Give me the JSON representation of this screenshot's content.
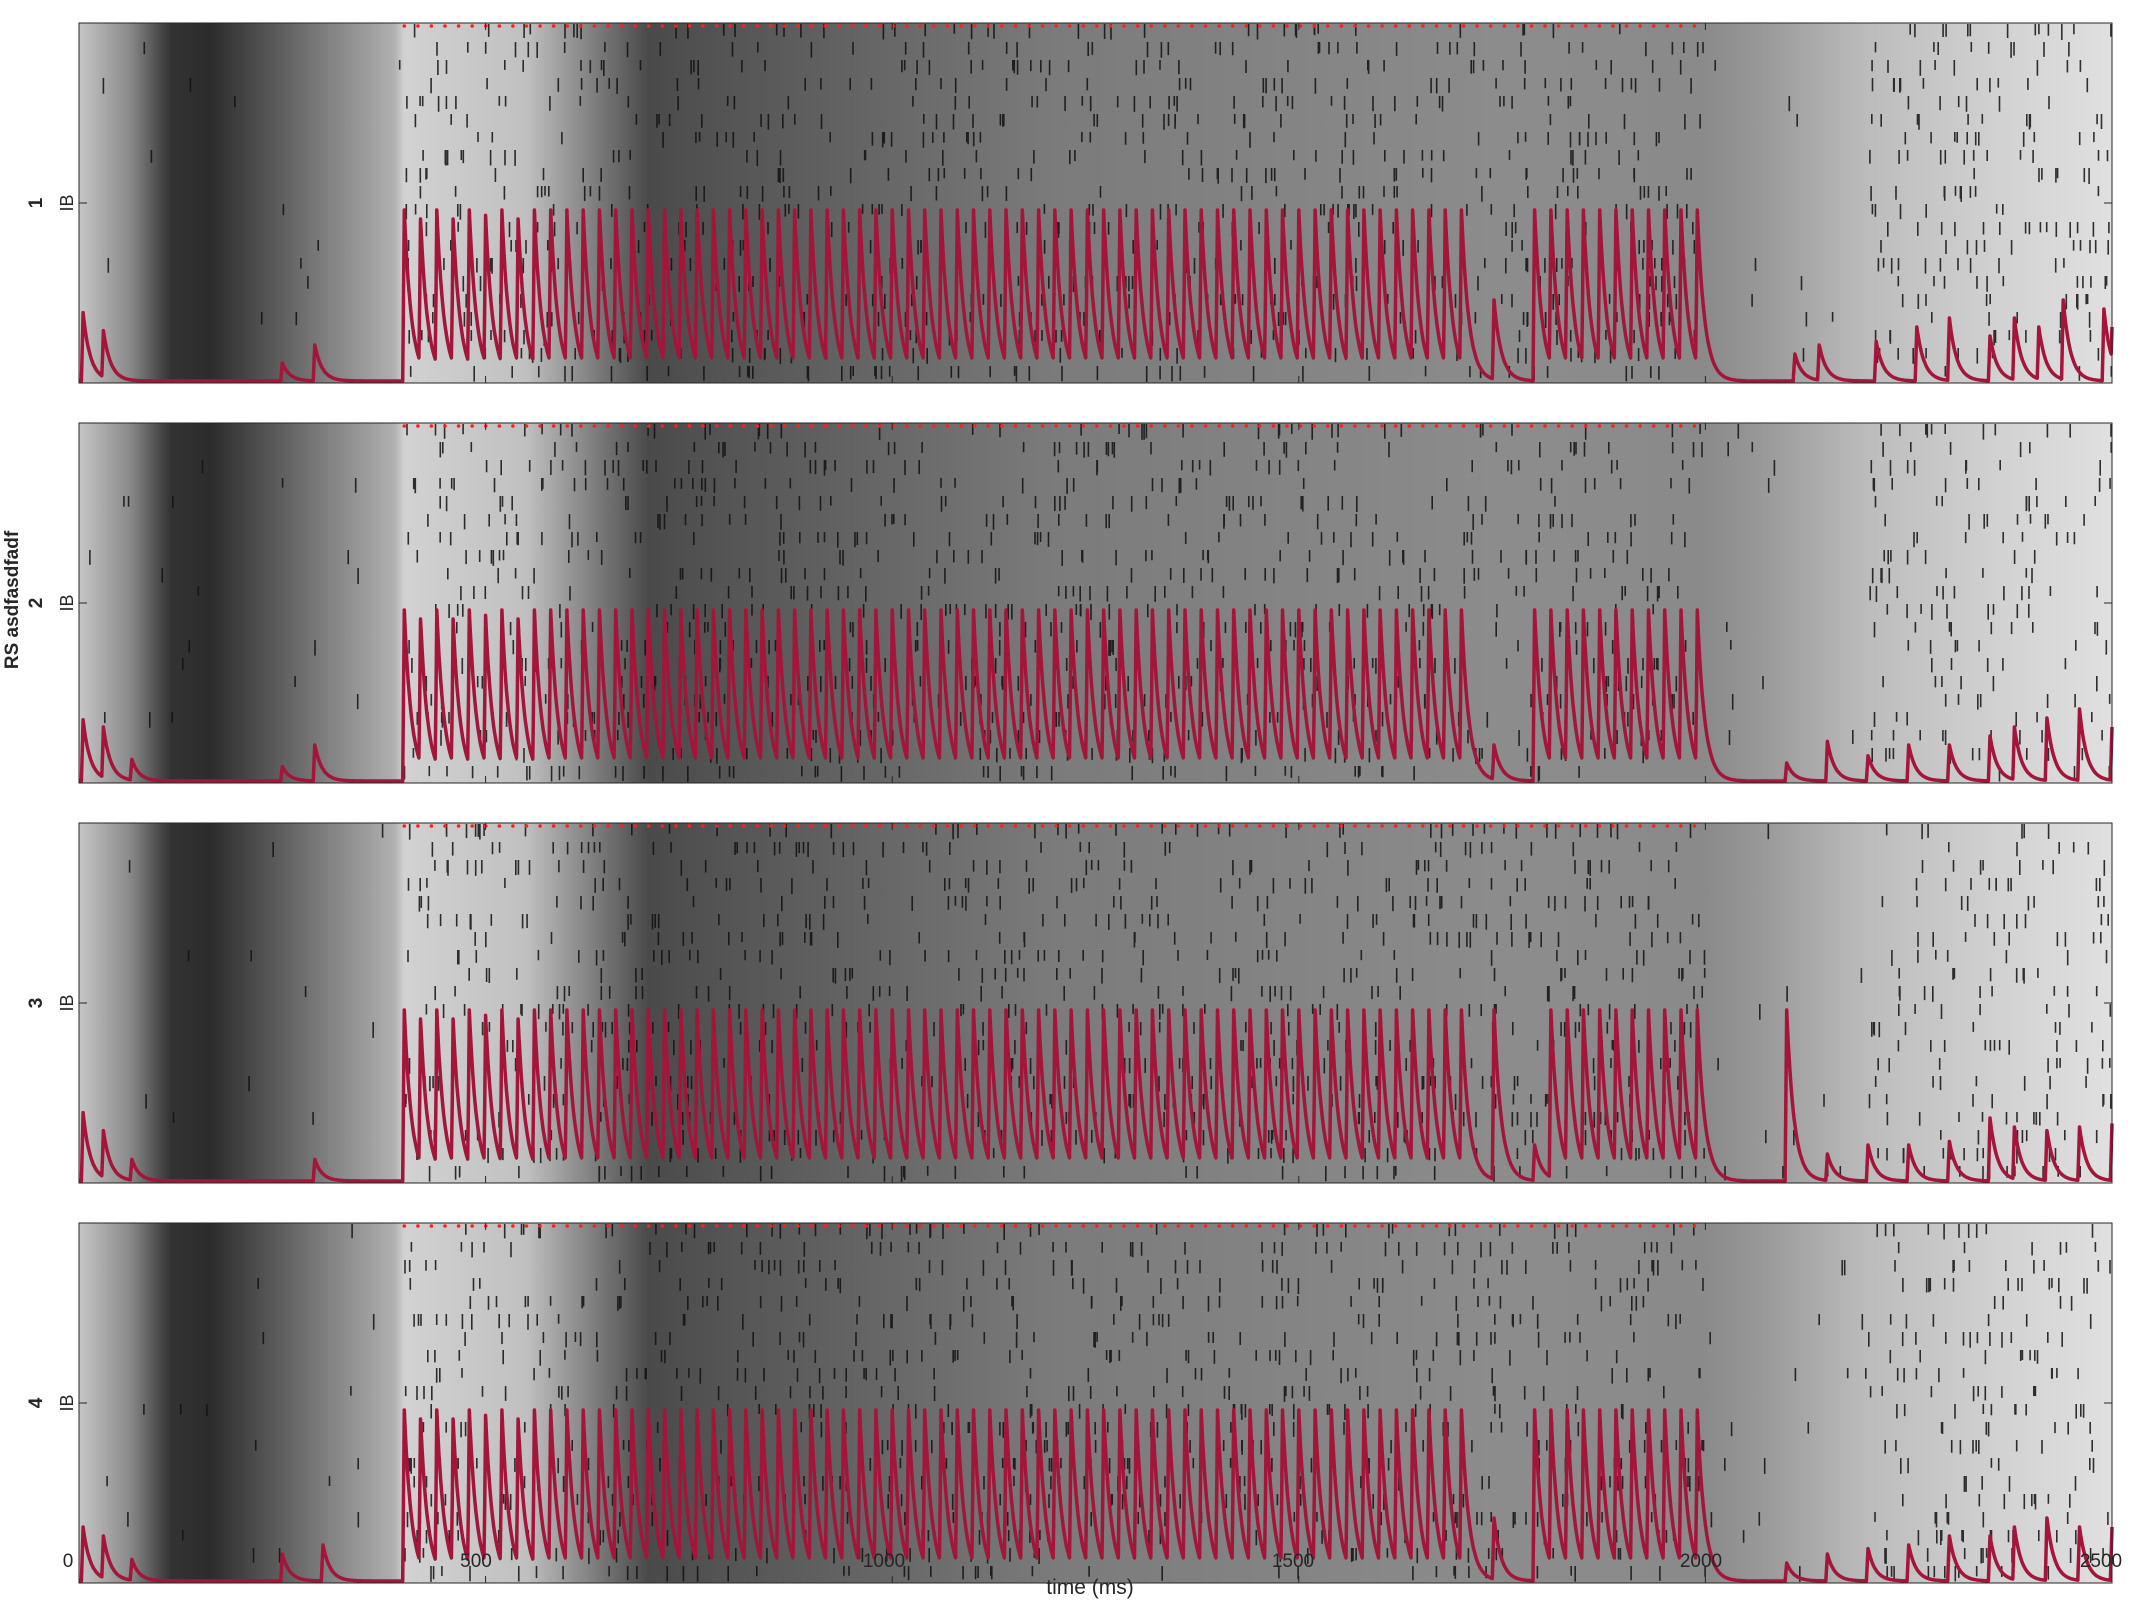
{
  "chart_data": {
    "type": "line",
    "xlabel": "time (ms)",
    "ylabel": "RS asdfasdfadf",
    "xlim": [
      0,
      2500
    ],
    "xticks": [
      0,
      500,
      1000,
      1500,
      2000,
      2500
    ],
    "background": "grayscale heatmap of population activity with black spike-raster rows",
    "line_color": "#A3163A",
    "marker_color": "#FF2020",
    "stimulus_markers": {
      "start": 400,
      "end": 1990,
      "period": 16.7,
      "description": "row of red dots along the top edge of every panel"
    },
    "panels": [
      {
        "label": "1",
        "ytick": "IB",
        "peak_times": [
          5,
          30,
          250,
          290,
          400,
          420,
          440,
          460,
          480,
          500,
          520,
          540,
          560,
          580,
          600,
          620,
          640,
          660,
          680,
          700,
          720,
          740,
          760,
          780,
          800,
          820,
          840,
          860,
          880,
          900,
          920,
          940,
          960,
          980,
          1000,
          1020,
          1040,
          1060,
          1080,
          1100,
          1120,
          1140,
          1160,
          1180,
          1200,
          1220,
          1240,
          1260,
          1280,
          1300,
          1320,
          1340,
          1360,
          1380,
          1400,
          1420,
          1440,
          1460,
          1480,
          1500,
          1520,
          1540,
          1560,
          1580,
          1600,
          1620,
          1640,
          1660,
          1680,
          1700,
          1740,
          1790,
          1810,
          1830,
          1850,
          1870,
          1890,
          1910,
          1930,
          1950,
          1970,
          1990,
          2110,
          2140,
          2210,
          2260,
          2300,
          2350,
          2380,
          2410,
          2440,
          2490,
          2500
        ],
        "peak_heights": [
          0.38,
          0.28,
          0.1,
          0.2,
          0.95,
          0.9,
          0.95,
          0.9,
          0.95,
          0.92,
          0.95,
          0.9,
          0.95,
          0.95,
          0.95,
          0.95,
          0.95,
          0.95,
          0.95,
          0.95,
          0.95,
          0.95,
          0.95,
          0.95,
          0.95,
          0.95,
          0.95,
          0.95,
          0.95,
          0.95,
          0.95,
          0.95,
          0.95,
          0.95,
          0.95,
          0.95,
          0.95,
          0.95,
          0.95,
          0.95,
          0.95,
          0.95,
          0.95,
          0.95,
          0.95,
          0.95,
          0.95,
          0.95,
          0.95,
          0.95,
          0.95,
          0.95,
          0.95,
          0.95,
          0.95,
          0.95,
          0.95,
          0.95,
          0.95,
          0.95,
          0.95,
          0.95,
          0.95,
          0.95,
          0.95,
          0.95,
          0.95,
          0.95,
          0.95,
          0.95,
          0.45,
          0.95,
          0.95,
          0.95,
          0.95,
          0.95,
          0.95,
          0.95,
          0.95,
          0.95,
          0.95,
          0.95,
          0.15,
          0.2,
          0.22,
          0.3,
          0.35,
          0.25,
          0.35,
          0.3,
          0.45,
          0.4,
          0.3
        ]
      },
      {
        "label": "2",
        "ytick": "IB",
        "peak_times": [
          5,
          30,
          65,
          250,
          290,
          400,
          420,
          440,
          460,
          480,
          500,
          520,
          540,
          560,
          580,
          600,
          620,
          640,
          660,
          680,
          700,
          720,
          740,
          760,
          780,
          800,
          820,
          840,
          860,
          880,
          900,
          920,
          940,
          960,
          980,
          1000,
          1020,
          1040,
          1060,
          1080,
          1100,
          1120,
          1140,
          1160,
          1180,
          1200,
          1220,
          1240,
          1260,
          1280,
          1300,
          1320,
          1340,
          1360,
          1380,
          1400,
          1420,
          1440,
          1460,
          1480,
          1500,
          1520,
          1540,
          1560,
          1580,
          1600,
          1620,
          1640,
          1660,
          1680,
          1700,
          1740,
          1790,
          1810,
          1830,
          1850,
          1870,
          1890,
          1910,
          1930,
          1950,
          1970,
          1990,
          2100,
          2150,
          2200,
          2250,
          2300,
          2350,
          2380,
          2420,
          2460,
          2500
        ],
        "peak_heights": [
          0.34,
          0.3,
          0.12,
          0.08,
          0.2,
          0.95,
          0.9,
          0.95,
          0.9,
          0.95,
          0.92,
          0.95,
          0.9,
          0.95,
          0.95,
          0.95,
          0.95,
          0.95,
          0.95,
          0.95,
          0.95,
          0.95,
          0.95,
          0.95,
          0.95,
          0.95,
          0.95,
          0.95,
          0.95,
          0.95,
          0.95,
          0.95,
          0.95,
          0.95,
          0.95,
          0.95,
          0.95,
          0.95,
          0.95,
          0.95,
          0.95,
          0.95,
          0.95,
          0.95,
          0.95,
          0.95,
          0.95,
          0.95,
          0.95,
          0.95,
          0.95,
          0.95,
          0.95,
          0.95,
          0.95,
          0.95,
          0.95,
          0.95,
          0.95,
          0.95,
          0.95,
          0.95,
          0.95,
          0.95,
          0.95,
          0.95,
          0.95,
          0.95,
          0.95,
          0.95,
          0.95,
          0.2,
          0.95,
          0.95,
          0.95,
          0.95,
          0.95,
          0.95,
          0.95,
          0.95,
          0.95,
          0.95,
          0.95,
          0.1,
          0.22,
          0.14,
          0.2,
          0.2,
          0.25,
          0.3,
          0.35,
          0.4,
          0.3
        ]
      },
      {
        "label": "3",
        "ytick": "IB",
        "peak_times": [
          5,
          30,
          65,
          290,
          400,
          420,
          440,
          460,
          480,
          500,
          520,
          540,
          560,
          580,
          600,
          620,
          640,
          660,
          680,
          700,
          720,
          740,
          760,
          780,
          800,
          820,
          840,
          860,
          880,
          900,
          920,
          940,
          960,
          980,
          1000,
          1020,
          1040,
          1060,
          1080,
          1100,
          1120,
          1140,
          1160,
          1180,
          1200,
          1220,
          1240,
          1260,
          1280,
          1300,
          1320,
          1340,
          1360,
          1380,
          1400,
          1420,
          1440,
          1460,
          1480,
          1500,
          1520,
          1540,
          1560,
          1580,
          1600,
          1620,
          1640,
          1660,
          1680,
          1700,
          1740,
          1790,
          1810,
          1830,
          1850,
          1870,
          1890,
          1910,
          1930,
          1950,
          1970,
          1990,
          2100,
          2150,
          2200,
          2250,
          2300,
          2350,
          2380,
          2420,
          2460,
          2500
        ],
        "peak_heights": [
          0.38,
          0.28,
          0.12,
          0.12,
          0.95,
          0.9,
          0.95,
          0.9,
          0.95,
          0.92,
          0.95,
          0.9,
          0.95,
          0.95,
          0.95,
          0.95,
          0.95,
          0.95,
          0.95,
          0.95,
          0.95,
          0.95,
          0.95,
          0.95,
          0.95,
          0.95,
          0.95,
          0.95,
          0.95,
          0.95,
          0.95,
          0.95,
          0.95,
          0.95,
          0.95,
          0.95,
          0.95,
          0.95,
          0.95,
          0.95,
          0.95,
          0.95,
          0.95,
          0.95,
          0.95,
          0.95,
          0.95,
          0.95,
          0.95,
          0.95,
          0.95,
          0.95,
          0.95,
          0.95,
          0.95,
          0.95,
          0.95,
          0.95,
          0.95,
          0.95,
          0.95,
          0.95,
          0.95,
          0.95,
          0.95,
          0.95,
          0.95,
          0.95,
          0.95,
          0.95,
          0.95,
          0.2,
          0.95,
          0.95,
          0.95,
          0.95,
          0.95,
          0.95,
          0.95,
          0.95,
          0.95,
          0.95,
          0.95,
          0.15,
          0.2,
          0.2,
          0.22,
          0.35,
          0.3,
          0.28,
          0.3,
          0.32,
          0.35
        ]
      },
      {
        "label": "4",
        "ytick": "IB",
        "peak_times": [
          5,
          30,
          65,
          250,
          300,
          400,
          420,
          440,
          460,
          480,
          500,
          520,
          540,
          560,
          580,
          600,
          620,
          640,
          660,
          680,
          700,
          720,
          740,
          760,
          780,
          800,
          820,
          840,
          860,
          880,
          900,
          920,
          940,
          960,
          980,
          1000,
          1020,
          1040,
          1060,
          1080,
          1100,
          1120,
          1140,
          1160,
          1180,
          1200,
          1220,
          1240,
          1260,
          1280,
          1300,
          1320,
          1340,
          1360,
          1380,
          1400,
          1420,
          1440,
          1460,
          1480,
          1500,
          1520,
          1540,
          1560,
          1580,
          1600,
          1620,
          1640,
          1660,
          1680,
          1700,
          1740,
          1790,
          1810,
          1830,
          1850,
          1870,
          1890,
          1910,
          1930,
          1950,
          1970,
          1990,
          2100,
          2150,
          2200,
          2250,
          2300,
          2350,
          2380,
          2420,
          2460,
          2500
        ],
        "peak_heights": [
          0.3,
          0.25,
          0.12,
          0.15,
          0.2,
          0.95,
          0.9,
          0.95,
          0.9,
          0.95,
          0.92,
          0.95,
          0.9,
          0.95,
          0.95,
          0.95,
          0.95,
          0.95,
          0.95,
          0.95,
          0.95,
          0.95,
          0.95,
          0.95,
          0.95,
          0.95,
          0.95,
          0.95,
          0.95,
          0.95,
          0.95,
          0.95,
          0.95,
          0.95,
          0.95,
          0.95,
          0.95,
          0.95,
          0.95,
          0.95,
          0.95,
          0.95,
          0.95,
          0.95,
          0.95,
          0.95,
          0.95,
          0.95,
          0.95,
          0.95,
          0.95,
          0.95,
          0.95,
          0.95,
          0.95,
          0.95,
          0.95,
          0.95,
          0.95,
          0.95,
          0.95,
          0.95,
          0.95,
          0.95,
          0.95,
          0.95,
          0.95,
          0.95,
          0.95,
          0.95,
          0.95,
          0.35,
          0.95,
          0.95,
          0.95,
          0.95,
          0.95,
          0.95,
          0.95,
          0.95,
          0.95,
          0.95,
          0.95,
          0.1,
          0.15,
          0.18,
          0.2,
          0.25,
          0.25,
          0.3,
          0.35,
          0.3,
          0.3
        ]
      }
    ]
  }
}
